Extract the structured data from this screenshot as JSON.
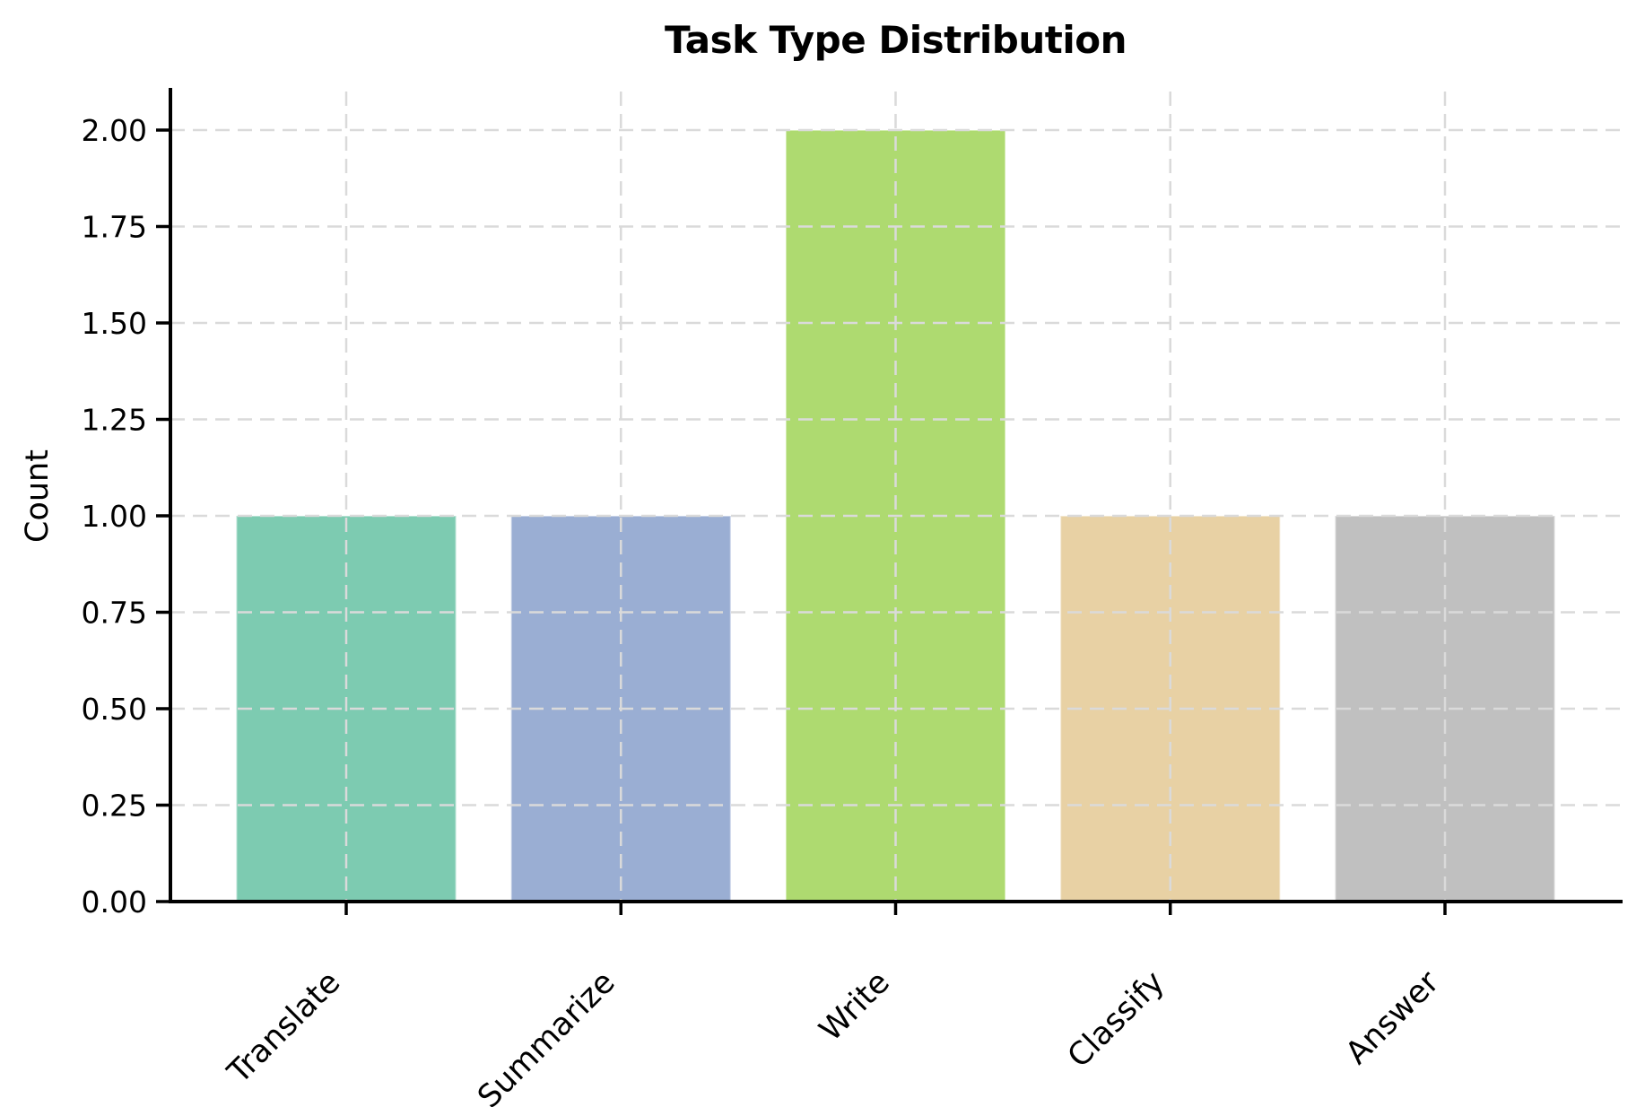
{
  "figure": {
    "background": "#ffffff"
  },
  "chart_data": {
    "type": "bar",
    "title": "Task Type Distribution",
    "xlabel": "",
    "ylabel": "Count",
    "categories": [
      "Translate",
      "Summarize",
      "Write",
      "Classify",
      "Answer"
    ],
    "values": [
      1,
      1,
      2,
      1,
      1
    ],
    "bar_colors": [
      "#7dcbb1",
      "#9aaed3",
      "#aeda70",
      "#e8d1a4",
      "#c0c0c0"
    ],
    "bar_width_fraction": 0.8,
    "ylim": [
      0,
      2.1
    ],
    "xlim": [
      -0.64,
      4.64
    ],
    "yticks": [
      0,
      0.25,
      0.5,
      0.75,
      1,
      1.25,
      1.5,
      1.75,
      2
    ],
    "ytick_labels": [
      "0.00",
      "0.25",
      "0.50",
      "0.75",
      "1.00",
      "1.25",
      "1.50",
      "1.75",
      "2.00"
    ],
    "xtick_rotation_deg": 45,
    "grid": {
      "visible": true,
      "style": "dashed",
      "axes": "both",
      "drawn_above_bars": true
    },
    "legend": "none"
  },
  "style": {
    "axis_color": "#000000",
    "text_color": "#000000",
    "grid_color": "#dadada",
    "title_color": "#000000"
  }
}
